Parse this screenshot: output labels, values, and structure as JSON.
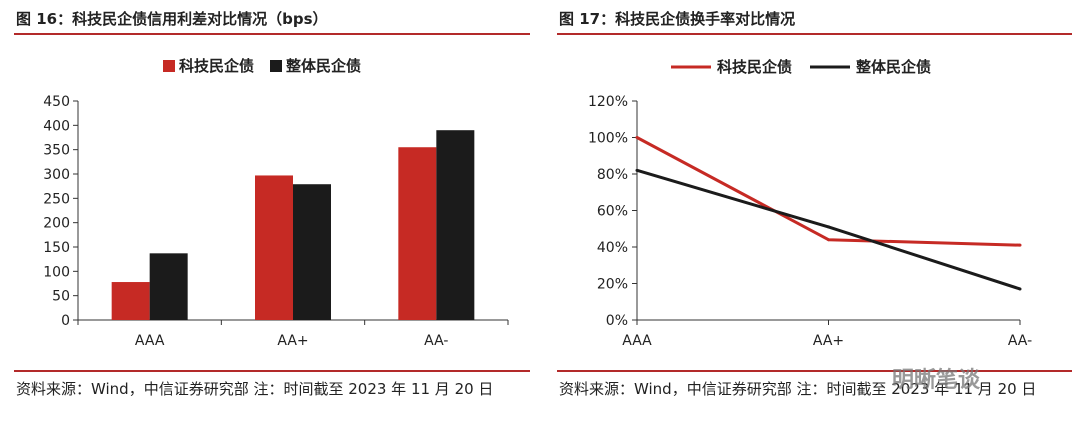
{
  "left_figure": {
    "title": "图 16：科技民企债信用利差对比情况（bps）",
    "source": "资料来源：Wind，中信证券研究部 注：时间截至 2023 年 11 月 20 日"
  },
  "right_figure": {
    "title": "图 17：科技民企债换手率对比情况",
    "source": "资料来源：Wind，中信证券研究部 注：时间截至 2023 年 11 月 20 日"
  },
  "watermark": "明晰笔谈",
  "colors": {
    "red": "#c62a24",
    "black": "#1b1b1b",
    "rule": "#b32a2a"
  },
  "chart_data": [
    {
      "type": "bar",
      "title": "图 16：科技民企债信用利差对比情况（bps）",
      "categories": [
        "AAA",
        "AA+",
        "AA-"
      ],
      "series": [
        {
          "name": "科技民企债",
          "values": [
            78,
            297,
            355
          ]
        },
        {
          "name": "整体民企债",
          "values": [
            137,
            279,
            390
          ]
        }
      ],
      "ylim": [
        0,
        450
      ],
      "yticks": [
        0,
        50,
        100,
        150,
        200,
        250,
        300,
        350,
        400,
        450
      ],
      "legend": "top-center",
      "grid": false
    },
    {
      "type": "line",
      "title": "图 17：科技民企债换手率对比情况",
      "categories": [
        "AAA",
        "AA+",
        "AA-"
      ],
      "series": [
        {
          "name": "科技民企债",
          "values": [
            100,
            44,
            41
          ]
        },
        {
          "name": "整体民企债",
          "values": [
            82,
            51,
            17
          ]
        }
      ],
      "ylim": [
        0,
        120
      ],
      "yticks": [
        "0%",
        "20%",
        "40%",
        "60%",
        "80%",
        "100%",
        "120%"
      ],
      "legend": "top-center",
      "grid": false
    }
  ]
}
